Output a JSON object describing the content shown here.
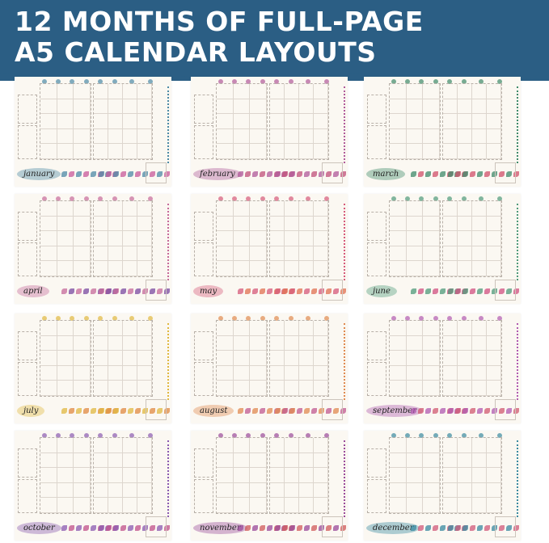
{
  "header": {
    "line1": "12 MONTHS OF FULL-PAGE",
    "line2": "A5 CALENDAR LAYOUTS",
    "background": "#2b5e84"
  },
  "pages": [
    {
      "month": "january",
      "accent": "#4d8aa6",
      "flower": "#c85a9a"
    },
    {
      "month": "february",
      "accent": "#b05a9a",
      "flower": "#c0507a"
    },
    {
      "month": "march",
      "accent": "#3f8a6a",
      "flower": "#d0506a"
    },
    {
      "month": "april",
      "accent": "#c66a9a",
      "flower": "#7a4aa0"
    },
    {
      "month": "may",
      "accent": "#d65a7a",
      "flower": "#e07050"
    },
    {
      "month": "june",
      "accent": "#4f9a7a",
      "flower": "#d05080"
    },
    {
      "month": "july",
      "accent": "#e0b840",
      "flower": "#e08a40"
    },
    {
      "month": "august",
      "accent": "#e08a50",
      "flower": "#c05a90"
    },
    {
      "month": "september",
      "accent": "#b05ab0",
      "flower": "#d05a70"
    },
    {
      "month": "october",
      "accent": "#8a5ab0",
      "flower": "#c0508a"
    },
    {
      "month": "november",
      "accent": "#9a4a9a",
      "flower": "#d05a5a"
    },
    {
      "month": "december",
      "accent": "#3a8aa0",
      "flower": "#d05a7a"
    }
  ]
}
